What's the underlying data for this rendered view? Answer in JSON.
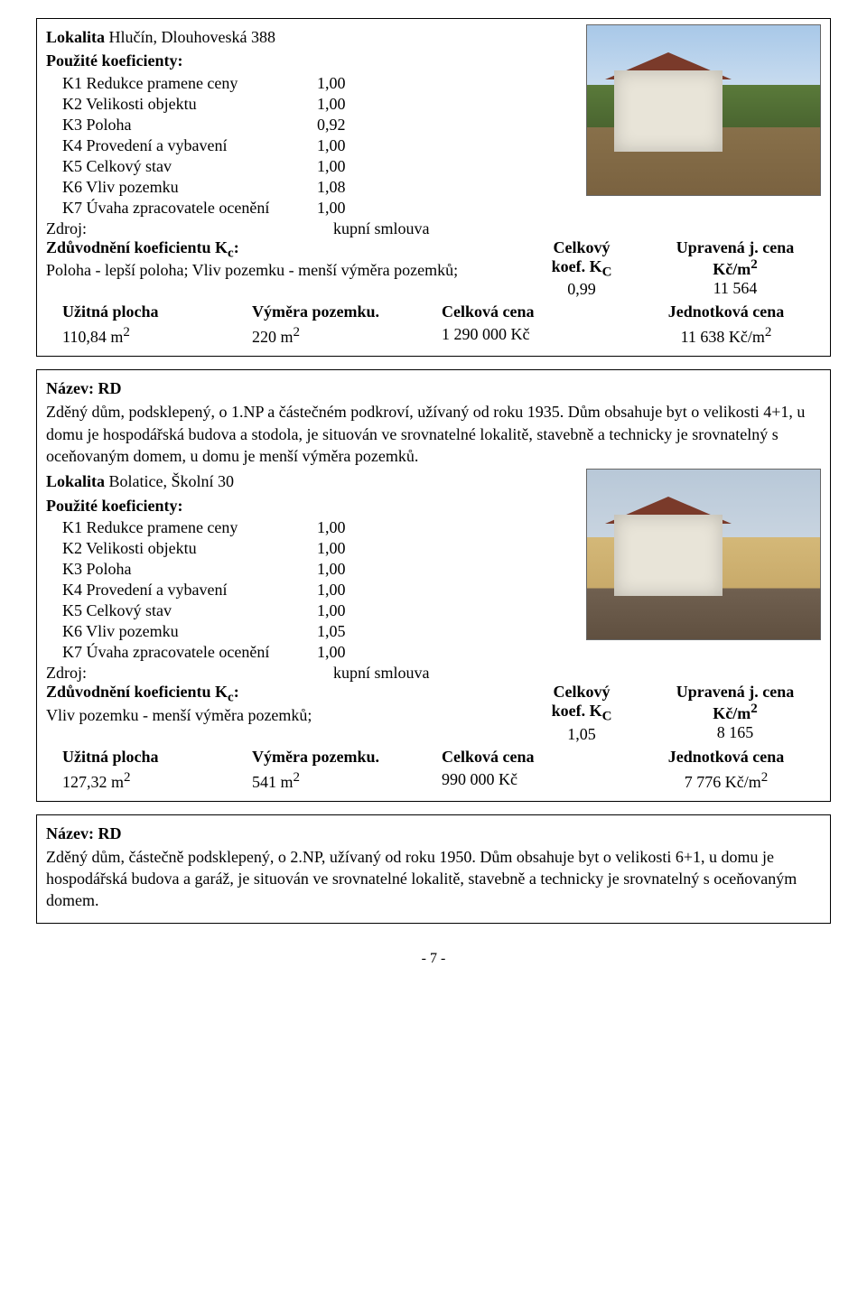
{
  "box1": {
    "lokalita_label": "Lokalita",
    "lokalita_value": "Hlučín, Dlouhoveská 388",
    "koef_header": "Použité koeficienty:",
    "coeffs": [
      {
        "label": "K1 Redukce pramene ceny",
        "val": "1,00"
      },
      {
        "label": "K2 Velikosti objektu",
        "val": "1,00"
      },
      {
        "label": "K3 Poloha",
        "val": "0,92"
      },
      {
        "label": "K4 Provedení a vybavení",
        "val": "1,00"
      },
      {
        "label": "K5 Celkový stav",
        "val": "1,00"
      },
      {
        "label": "K6 Vliv pozemku",
        "val": "1,08"
      },
      {
        "label": "K7 Úvaha zpracovatele ocenění",
        "val": "1,00"
      }
    ],
    "zdroj_label": "Zdroj:",
    "zdroj_value": "kupní smlouva",
    "zduv_label": "Zdůvodnění koeficientu K",
    "zduv_sub": "c",
    "zduv_colon": ":",
    "zduv_text": "Poloha - lepší poloha; Vliv pozemku - menší výměra pozemků;",
    "celkovy_label": "Celkový",
    "koef_kc_label": "koef. K",
    "koef_kc_sub": "C",
    "koef_val": "0,99",
    "upravena_label": "Upravená j. cena",
    "kcm2_label": "Kč/m",
    "kcm2_sup": "2",
    "upravena_val": "11 564",
    "sum_headers": [
      "Užitná plocha",
      "Výměra pozemku.",
      "Celková cena",
      "Jednotková cena"
    ],
    "sum_vals": [
      "110,84 m",
      "220 m",
      "1 290 000 Kč",
      "11 638 Kč/m"
    ],
    "sum_sups": [
      "2",
      "2",
      "",
      "2"
    ]
  },
  "box2": {
    "nazev_label": "Název:",
    "nazev_value": "RD",
    "desc": "Zděný dům, podsklepený, o 1.NP a částečném podkroví, užívaný od roku 1935. Dům obsahuje byt o velikosti 4+1, u domu je hospodářská budova a stodola, je situován ve srovnatelné lokalitě, stavebně a technicky je srovnatelný s oceňovaným domem, u domu je menší výměra pozemků.",
    "lokalita_label": "Lokalita",
    "lokalita_value": "Bolatice, Školní 30",
    "koef_header": "Použité koeficienty:",
    "coeffs": [
      {
        "label": "K1 Redukce pramene ceny",
        "val": "1,00"
      },
      {
        "label": "K2 Velikosti objektu",
        "val": "1,00"
      },
      {
        "label": "K3 Poloha",
        "val": "1,00"
      },
      {
        "label": "K4 Provedení a vybavení",
        "val": "1,00"
      },
      {
        "label": "K5 Celkový stav",
        "val": "1,00"
      },
      {
        "label": "K6 Vliv pozemku",
        "val": "1,05"
      },
      {
        "label": "K7 Úvaha zpracovatele ocenění",
        "val": "1,00"
      }
    ],
    "zdroj_label": "Zdroj:",
    "zdroj_value": "kupní smlouva",
    "zduv_label": "Zdůvodnění koeficientu K",
    "zduv_sub": "c",
    "zduv_colon": ":",
    "zduv_text": "Vliv pozemku - menší výměra pozemků;",
    "celkovy_label": "Celkový",
    "koef_kc_label": "koef. K",
    "koef_kc_sub": "C",
    "koef_val": "1,05",
    "upravena_label": "Upravená j. cena",
    "kcm2_label": "Kč/m",
    "kcm2_sup": "2",
    "upravena_val": "8 165",
    "sum_headers": [
      "Užitná plocha",
      "Výměra pozemku.",
      "Celková cena",
      "Jednotková cena"
    ],
    "sum_vals": [
      "127,32 m",
      "541 m",
      "990 000 Kč",
      "7 776 Kč/m"
    ],
    "sum_sups": [
      "2",
      "2",
      "",
      "2"
    ]
  },
  "box3": {
    "nazev_label": "Název:",
    "nazev_value": "RD",
    "desc": "Zděný dům, částečně podsklepený, o 2.NP, užívaný od roku 1950. Dům obsahuje byt o velikosti 6+1, u domu je hospodářská budova a garáž, je situován ve srovnatelné lokalitě, stavebně a technicky je srovnatelný s oceňovaným domem."
  },
  "page_num": "- 7 -"
}
